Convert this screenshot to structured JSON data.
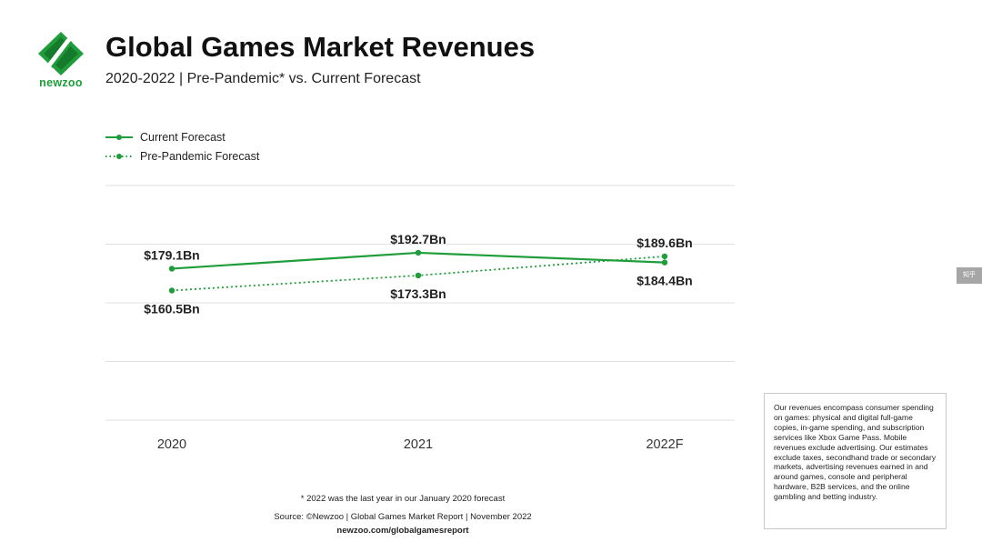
{
  "brand": {
    "name": "newzoo",
    "color": "#1f9d3a"
  },
  "header": {
    "title": "Global Games Market Revenues",
    "subtitle": "2020-2022 | Pre-Pandemic* vs. Current Forecast"
  },
  "chart_data": {
    "type": "line",
    "title": "Global Games Market Revenues",
    "subtitle": "2020-2022 | Pre-Pandemic* vs. Current Forecast",
    "categories": [
      "2020",
      "2021",
      "2022F"
    ],
    "series": [
      {
        "name": "Current Forecast",
        "style": "solid",
        "color": "#1f9d3a",
        "values": [
          179.1,
          192.7,
          184.4
        ],
        "labels": [
          "$179.1Bn",
          "$192.7Bn",
          "$184.4Bn"
        ]
      },
      {
        "name": "Pre-Pandemic Forecast",
        "style": "dotted",
        "color": "#1f9d3a",
        "values": [
          160.5,
          173.3,
          189.6
        ],
        "labels": [
          "$160.5Bn",
          "$173.3Bn",
          "$189.6Bn"
        ]
      }
    ],
    "ylim": [
      50,
      250
    ],
    "grid": true,
    "legend_position": "top-left",
    "xlabel": "",
    "ylabel": ""
  },
  "footnotes": {
    "asterisk": "* 2022 was the last year in our January 2020 forecast",
    "source": "Source: ©Newzoo | Global Games Market Report | November 2022",
    "url": "newzoo.com/globalgamesreport"
  },
  "note": "Our revenues encompass consumer spending on games: physical and digital full-game copies, in-game spending, and subscription services like Xbox Game Pass. Mobile revenues exclude advertising. Our estimates exclude taxes, secondhand trade or secondary markets, advertising revenues earned in and around games, console and peripheral hardware, B2B services, and the online gambling and betting industry.",
  "side_tab": {
    "label": "知乎"
  }
}
